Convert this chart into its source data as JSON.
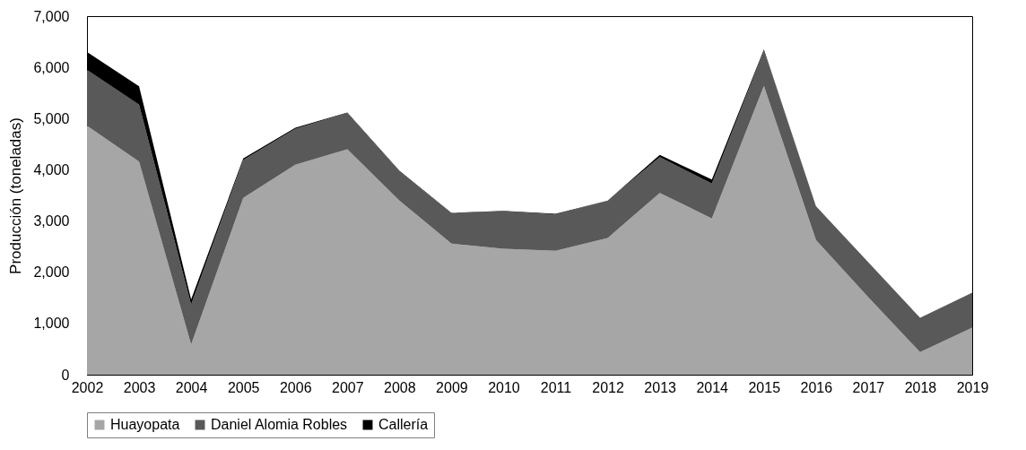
{
  "chart_data": {
    "type": "area",
    "stacked": true,
    "ylabel": "Producción (toneladas)",
    "categories": [
      "2002",
      "2003",
      "2004",
      "2005",
      "2006",
      "2007",
      "2008",
      "2009",
      "2010",
      "2011",
      "2012",
      "2013",
      "2014",
      "2015",
      "2016",
      "2017",
      "2018",
      "2019"
    ],
    "series": [
      {
        "name": "Huayopata",
        "color": "#a6a6a6",
        "values": [
          4860,
          4160,
          590,
          3450,
          4100,
          4400,
          3400,
          2560,
          2460,
          2420,
          2670,
          3550,
          3050,
          5640,
          2630,
          1520,
          440,
          920
        ]
      },
      {
        "name": "Daniel Alomia Robles",
        "color": "#595959",
        "values": [
          1090,
          1110,
          780,
          740,
          700,
          710,
          570,
          590,
          730,
          710,
          730,
          700,
          680,
          680,
          660,
          680,
          670,
          680
        ]
      },
      {
        "name": "Callería",
        "color": "#000000",
        "values": [
          350,
          360,
          100,
          30,
          20,
          10,
          10,
          10,
          10,
          10,
          0,
          40,
          80,
          30,
          0,
          0,
          0,
          0
        ]
      }
    ],
    "ylim": [
      0,
      7000
    ],
    "yticks": [
      {
        "value": 0,
        "label": "0"
      },
      {
        "value": 1000,
        "label": "1,000"
      },
      {
        "value": 2000,
        "label": "2,000"
      },
      {
        "value": 3000,
        "label": "3,000"
      },
      {
        "value": 4000,
        "label": "4,000"
      },
      {
        "value": 5000,
        "label": "5,000"
      },
      {
        "value": 6000,
        "label": "6,000"
      },
      {
        "value": 7000,
        "label": "7,000"
      }
    ],
    "grid": false,
    "legend": "bottom"
  }
}
